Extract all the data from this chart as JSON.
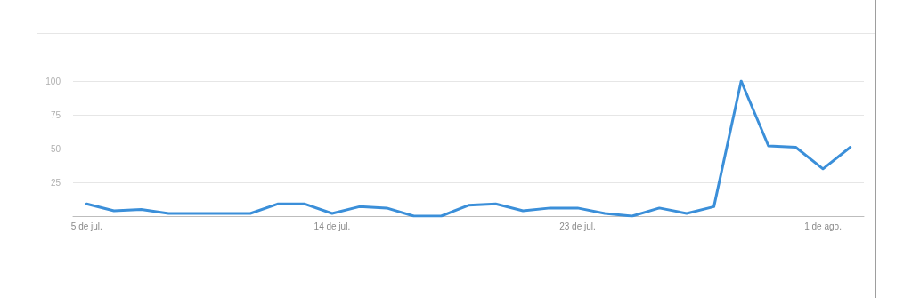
{
  "chart_data": {
    "type": "line",
    "categories": [
      "5 de jul.",
      null,
      null,
      null,
      null,
      null,
      null,
      null,
      null,
      "14 de jul.",
      null,
      null,
      null,
      null,
      null,
      null,
      null,
      null,
      "23 de jul.",
      null,
      null,
      null,
      null,
      null,
      null,
      null,
      null,
      "1 de ago.",
      null
    ],
    "series": [
      {
        "color": "#3b8fd9",
        "values": [
          9,
          4,
          5,
          2,
          2,
          2,
          2,
          9,
          9,
          2,
          7,
          6,
          0,
          0,
          8,
          9,
          4,
          6,
          6,
          2,
          0,
          6,
          2,
          7,
          100,
          52,
          51,
          35,
          51
        ]
      }
    ],
    "ylim": [
      0,
      100
    ],
    "yticks": [
      25,
      50,
      75,
      100
    ],
    "grid": "y",
    "marker": "none",
    "line_style": "solid"
  }
}
